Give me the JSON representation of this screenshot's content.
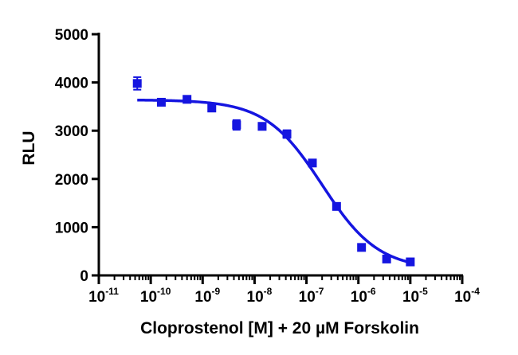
{
  "chart_data": {
    "type": "scatter",
    "title": "",
    "xlabel": "Cloprostenol [M] + 20 µM Forskolin",
    "ylabel": "RLU",
    "x_scale": "log",
    "xlim": [
      1e-11,
      0.0001
    ],
    "ylim": [
      0,
      5000
    ],
    "x_tick_base": "10",
    "x_tick_exponents": [
      "-11",
      "-10",
      "-9",
      "-8",
      "-7",
      "-6",
      "-5",
      "-4"
    ],
    "y_ticks": [
      0,
      1000,
      2000,
      3000,
      4000,
      5000
    ],
    "grid": false,
    "legend": "none",
    "colors": {
      "series": "#1515e0",
      "axis": "#000000"
    },
    "series": [
      {
        "marker": "square",
        "points": [
          {
            "x": 5.5e-11,
            "y": 3980,
            "err": 130
          },
          {
            "x": 1.6e-10,
            "y": 3590,
            "err": 40
          },
          {
            "x": 5e-10,
            "y": 3650,
            "err": 60
          },
          {
            "x": 1.5e-09,
            "y": 3470,
            "err": 40
          },
          {
            "x": 4.5e-09,
            "y": 3120,
            "err": 100
          },
          {
            "x": 1.4e-08,
            "y": 3090,
            "err": 70
          },
          {
            "x": 4.2e-08,
            "y": 2930,
            "err": 80
          },
          {
            "x": 1.3e-07,
            "y": 2330,
            "err": 30
          },
          {
            "x": 3.8e-07,
            "y": 1430,
            "err": 20
          },
          {
            "x": 1.15e-06,
            "y": 580,
            "err": 20
          },
          {
            "x": 3.5e-06,
            "y": 340,
            "err": 20
          },
          {
            "x": 1e-05,
            "y": 280,
            "err": 20
          }
        ]
      }
    ],
    "fit_curve": {
      "model": "four-parameter logistic",
      "top": 3640,
      "bottom": 120,
      "log_ec50": -6.7,
      "hill_slope": -0.8,
      "x_range": [
        5.5e-11,
        1e-05
      ]
    }
  }
}
